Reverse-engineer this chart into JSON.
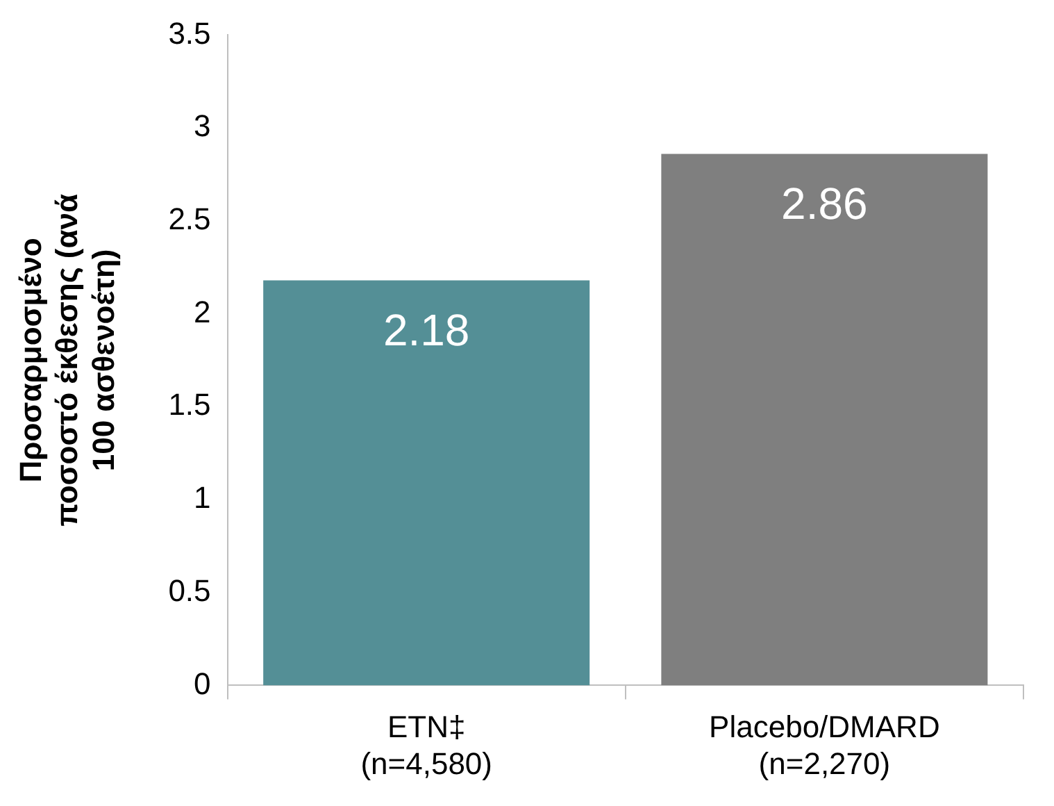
{
  "chart_data": {
    "type": "bar",
    "ylabel": "Προσαρμοσμένο ποσοστό έκθεσης (ανά 100 ασθενοέτη)",
    "categories": [
      "ETN‡\n(n=4,580)",
      "Placebo/DMARD\n(n=2,270)"
    ],
    "values": [
      2.18,
      2.86
    ],
    "colors": [
      "#548f96",
      "#7f7f7f"
    ],
    "ylim": [
      0,
      3.5
    ],
    "yticks": [
      0,
      0.5,
      1,
      1.5,
      2,
      2.5,
      3,
      3.5
    ],
    "data_labels": true,
    "grid": false,
    "legend": false
  }
}
